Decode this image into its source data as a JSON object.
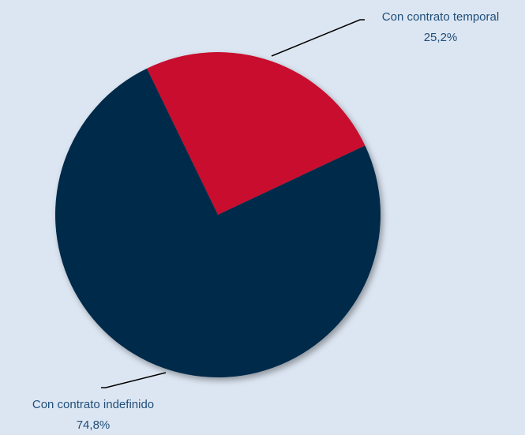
{
  "chart_data": {
    "type": "pie",
    "title": "",
    "legend": "none",
    "slices": [
      {
        "label": "Con contrato temporal",
        "value_label": "25,2%",
        "value": 25.2,
        "color": "#c8102e"
      },
      {
        "label": "Con contrato indefinido",
        "value_label": "74,8%",
        "value": 74.8,
        "color": "#002b49"
      }
    ]
  }
}
